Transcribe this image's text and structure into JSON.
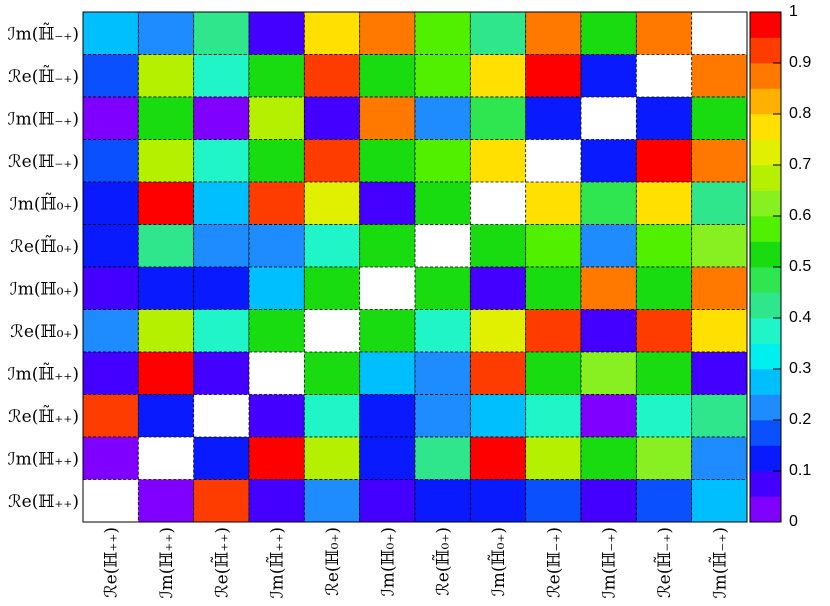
{
  "chart_data": {
    "type": "heatmap",
    "x_categories": [
      "ℛe(ℍ₊₊)",
      "ℐm(ℍ₊₊)",
      "ℛe(ℍ̃₊₊)",
      "ℐm(ℍ̃₊₊)",
      "ℛe(ℍ₀₊)",
      "ℐm(ℍ₀₊)",
      "ℛe(ℍ̃₀₊)",
      "ℐm(ℍ̃₀₊)",
      "ℛe(ℍ₋₊)",
      "ℐm(ℍ₋₊)",
      "ℛe(ℍ̃₋₊)",
      "ℐm(ℍ̃₋₊)"
    ],
    "y_categories": [
      "ℐm(ℍ̃₋₊)",
      "ℛe(ℍ̃₋₊)",
      "ℐm(ℍ₋₊)",
      "ℛe(ℍ₋₊)",
      "ℐm(ℍ̃₀₊)",
      "ℛe(ℍ̃₀₊)",
      "ℐm(ℍ₀₊)",
      "ℛe(ℍ₀₊)",
      "ℐm(ℍ̃₊₊)",
      "ℛe(ℍ̃₊₊)",
      "ℐm(ℍ₊₊)",
      "ℛe(ℍ₊₊)"
    ],
    "values": [
      [
        0.28,
        0.22,
        0.42,
        0.08,
        0.77,
        0.87,
        0.58,
        0.42,
        0.87,
        0.52,
        0.87,
        null
      ],
      [
        0.17,
        0.67,
        0.38,
        0.52,
        0.92,
        0.52,
        0.58,
        0.77,
        0.97,
        0.12,
        null,
        0.87
      ],
      [
        0.04,
        0.52,
        0.04,
        0.65,
        0.08,
        0.87,
        0.22,
        0.47,
        0.12,
        null,
        0.12,
        0.52
      ],
      [
        0.17,
        0.67,
        0.38,
        0.52,
        0.92,
        0.52,
        0.58,
        0.77,
        null,
        0.12,
        0.97,
        0.87
      ],
      [
        0.12,
        0.97,
        0.28,
        0.92,
        0.72,
        0.06,
        0.52,
        null,
        0.77,
        0.47,
        0.77,
        0.42
      ],
      [
        0.12,
        0.42,
        0.22,
        0.22,
        0.38,
        0.52,
        null,
        0.52,
        0.58,
        0.22,
        0.58,
        0.62
      ],
      [
        0.08,
        0.12,
        0.12,
        0.28,
        0.52,
        null,
        0.52,
        0.06,
        0.52,
        0.87,
        0.52,
        0.87
      ],
      [
        0.22,
        0.67,
        0.38,
        0.52,
        null,
        0.52,
        0.38,
        0.72,
        0.92,
        0.08,
        0.92,
        0.77
      ],
      [
        0.08,
        0.97,
        0.08,
        null,
        0.52,
        0.28,
        0.22,
        0.92,
        0.52,
        0.62,
        0.52,
        0.08
      ],
      [
        0.92,
        0.12,
        null,
        0.08,
        0.38,
        0.12,
        0.22,
        0.28,
        0.38,
        0.04,
        0.38,
        0.42
      ],
      [
        0.04,
        null,
        0.12,
        0.97,
        0.67,
        0.12,
        0.42,
        0.97,
        0.67,
        0.52,
        0.62,
        0.22
      ],
      [
        null,
        0.04,
        0.92,
        0.08,
        0.22,
        0.08,
        0.12,
        0.12,
        0.17,
        0.06,
        0.17,
        0.28
      ]
    ],
    "zlim": [
      0,
      1
    ],
    "zticks": [
      0,
      0.1,
      0.2,
      0.3,
      0.4,
      0.5,
      0.6,
      0.7,
      0.8,
      0.9,
      1
    ],
    "palette": [
      "#7f00ff",
      "#4400ff",
      "#0a1aff",
      "#0a50ff",
      "#1e8cff",
      "#00bfff",
      "#00f0f0",
      "#20f5c8",
      "#30e68c",
      "#30e650",
      "#18dc10",
      "#50f000",
      "#88f020",
      "#b4f000",
      "#e0f000",
      "#ffe000",
      "#ffb000",
      "#ff7800",
      "#ff3c00",
      "#ff0000"
    ]
  }
}
